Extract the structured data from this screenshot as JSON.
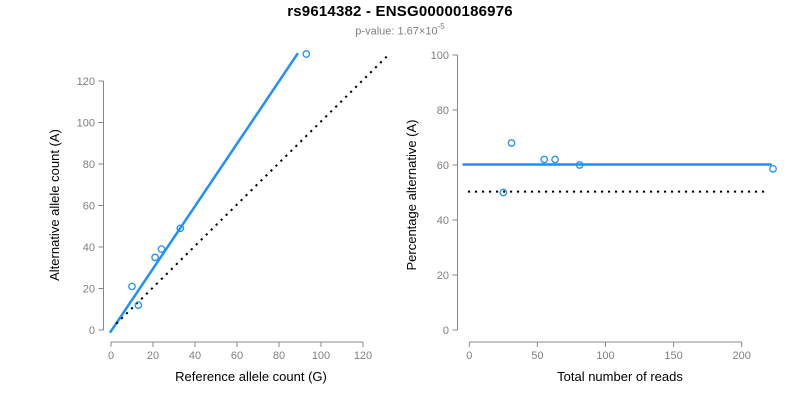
{
  "header": {
    "title": "rs9614382 - ENSG00000186976",
    "subtitle_prefix": "p-value: 1.67×10",
    "subtitle_exponent": "-5"
  },
  "colors": {
    "accent_blue": "#1E90FF",
    "identity_line_black": "#000000",
    "axis_gray": "#888888",
    "tick_label_gray": "#7f7f7f",
    "axis_title_black": "#000000",
    "subtitle_gray": "#7f7f7f"
  },
  "chart_data": [
    {
      "id": "allele-count-scatter",
      "type": "scatter",
      "xlabel": "Reference allele count (G)",
      "ylabel": "Alternative allele count (A)",
      "xticks": [
        0,
        20,
        40,
        60,
        80,
        100,
        120
      ],
      "yticks": [
        0,
        20,
        40,
        60,
        80,
        100,
        120
      ],
      "xlim": [
        0,
        132
      ],
      "ylim": [
        0,
        133
      ],
      "grid": false,
      "points": [
        [
          10,
          21
        ],
        [
          13,
          12
        ],
        [
          21,
          35
        ],
        [
          24,
          39
        ],
        [
          33,
          49
        ],
        [
          93,
          133
        ]
      ],
      "lines": [
        {
          "name": "regression-line",
          "style": "solid",
          "color": "#1E90FF",
          "width": 2.5,
          "from": [
            -0.5,
            -1.3
          ],
          "to": [
            89,
            133.4
          ]
        },
        {
          "name": "identity-line",
          "style": "dotted",
          "color": "#000000",
          "width": 2,
          "from": [
            2.5,
            3
          ],
          "to": [
            131.5,
            132
          ]
        }
      ]
    },
    {
      "id": "percentage-reads-scatter",
      "type": "scatter",
      "xlabel": "Total number of reads",
      "ylabel": "Percentage alternative (A)",
      "xticks": [
        0,
        50,
        100,
        150,
        200
      ],
      "yticks": [
        0,
        20,
        40,
        60,
        80,
        100
      ],
      "xlim": [
        0,
        228
      ],
      "ylim": [
        0,
        100
      ],
      "grid": false,
      "points": [
        [
          31,
          68
        ],
        [
          25,
          50
        ],
        [
          55,
          62
        ],
        [
          63,
          62
        ],
        [
          81,
          60
        ],
        [
          223,
          58.6
        ]
      ],
      "lines": [
        {
          "name": "fitted-line",
          "style": "solid",
          "color": "#1E90FF",
          "width": 2.5,
          "from": [
            -5,
            60.2
          ],
          "to": [
            222,
            60.2
          ]
        },
        {
          "name": "null-expectation-line",
          "style": "dotted",
          "color": "#000000",
          "width": 2,
          "from": [
            -1,
            50.3
          ],
          "to": [
            219,
            50.3
          ]
        }
      ]
    }
  ]
}
